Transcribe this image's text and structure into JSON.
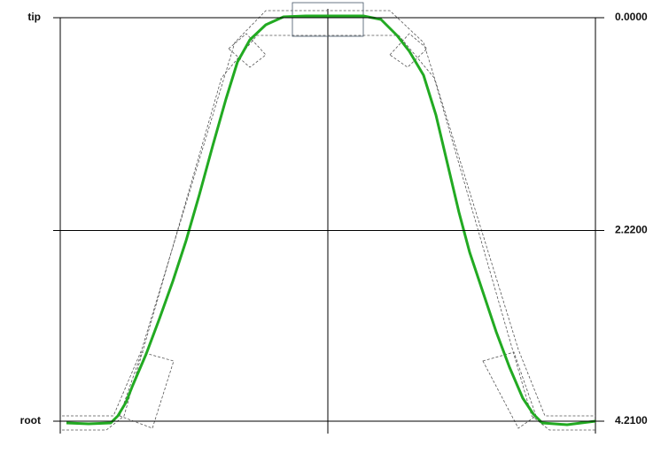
{
  "chart_data": {
    "type": "line",
    "ylim": [
      0,
      4.21
    ],
    "yticks": [
      {
        "value": 0,
        "label": "0.0000"
      },
      {
        "value": 2.22,
        "label": "2.2200"
      },
      {
        "value": 4.21,
        "label": "4.2100"
      }
    ],
    "left_labels": [
      {
        "value": 0,
        "label": "tip"
      },
      {
        "value": 4.21,
        "label": "root"
      }
    ],
    "grid": true
  }
}
